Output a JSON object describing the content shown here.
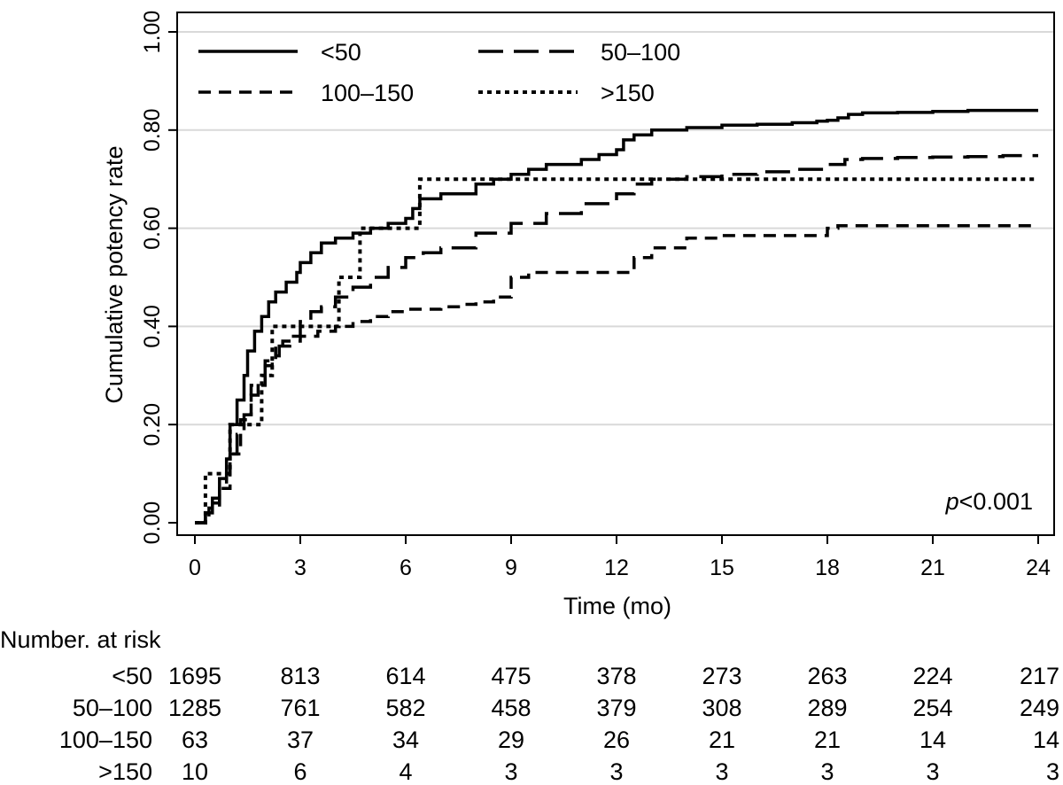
{
  "chart_data": {
    "type": "line",
    "subtype": "kaplan-meier cumulative incidence (step)",
    "title": "",
    "xlabel": "Time (mo)",
    "ylabel": "Cumulative potency rate",
    "xlim": [
      0,
      24
    ],
    "ylim": [
      0,
      1
    ],
    "xticks": [
      0,
      3,
      6,
      9,
      12,
      15,
      18,
      21,
      24
    ],
    "xtick_labels": [
      "0",
      "3",
      "6",
      "9",
      "12",
      "15",
      "18",
      "21",
      "24"
    ],
    "yticks": [
      0,
      0.2,
      0.4,
      0.6,
      0.8,
      1.0
    ],
    "ytick_labels": [
      "0.00",
      "0.20",
      "0.40",
      "0.60",
      "0.80",
      "1.00"
    ],
    "grid": "horizontal",
    "legend_position": "top-left",
    "annotation": {
      "prefix": "p",
      "text": "<0.001"
    },
    "series": [
      {
        "name": "<50",
        "style": "solid",
        "stroke_width": 3.5,
        "x": [
          0,
          0.3,
          0.5,
          0.7,
          0.9,
          1.0,
          1.2,
          1.4,
          1.5,
          1.7,
          1.9,
          2.1,
          2.3,
          2.6,
          2.9,
          3.0,
          3.3,
          3.6,
          4.0,
          4.5,
          5.0,
          5.5,
          6.0,
          6.2,
          6.4,
          7.0,
          8.0,
          8.5,
          9.0,
          9.5,
          10.0,
          11.0,
          11.5,
          12.0,
          12.2,
          12.5,
          13.0,
          14.0,
          15.0,
          16.0,
          17.0,
          17.7,
          18.0,
          18.3,
          18.6,
          19.0,
          20.0,
          21.0,
          22.0,
          23.0,
          24.0
        ],
        "y": [
          0,
          0.02,
          0.05,
          0.09,
          0.13,
          0.2,
          0.25,
          0.3,
          0.35,
          0.39,
          0.42,
          0.45,
          0.47,
          0.49,
          0.51,
          0.53,
          0.55,
          0.57,
          0.58,
          0.59,
          0.6,
          0.61,
          0.62,
          0.64,
          0.66,
          0.67,
          0.69,
          0.7,
          0.71,
          0.72,
          0.73,
          0.74,
          0.75,
          0.76,
          0.78,
          0.79,
          0.8,
          0.805,
          0.81,
          0.812,
          0.815,
          0.818,
          0.82,
          0.825,
          0.832,
          0.835,
          0.836,
          0.838,
          0.84,
          0.84,
          0.84
        ]
      },
      {
        "name": "50–100",
        "style": "longdash",
        "stroke_width": 3.5,
        "x": [
          0,
          0.3,
          0.5,
          0.7,
          0.9,
          1.0,
          1.2,
          1.4,
          1.6,
          1.8,
          2.0,
          2.2,
          2.4,
          2.7,
          3.0,
          3.3,
          3.6,
          4.0,
          4.5,
          5.0,
          5.5,
          6.0,
          6.5,
          7.0,
          8.0,
          9.0,
          10.0,
          11.0,
          12.0,
          12.5,
          13.0,
          14.0,
          15.0,
          16.0,
          17.0,
          18.0,
          18.5,
          19.0,
          20.0,
          21.0,
          22.0,
          23.0,
          24.0
        ],
        "y": [
          0,
          0.02,
          0.04,
          0.07,
          0.1,
          0.14,
          0.18,
          0.22,
          0.26,
          0.29,
          0.32,
          0.34,
          0.36,
          0.38,
          0.41,
          0.43,
          0.44,
          0.46,
          0.48,
          0.5,
          0.52,
          0.54,
          0.55,
          0.56,
          0.59,
          0.61,
          0.63,
          0.65,
          0.67,
          0.69,
          0.7,
          0.705,
          0.71,
          0.715,
          0.72,
          0.73,
          0.74,
          0.742,
          0.744,
          0.745,
          0.746,
          0.748,
          0.748
        ]
      },
      {
        "name": "100–150",
        "style": "dash",
        "stroke_width": 3.5,
        "x": [
          0,
          0.4,
          0.7,
          1.0,
          1.3,
          1.6,
          2.0,
          2.3,
          2.5,
          3.0,
          3.5,
          4.0,
          4.5,
          5.0,
          5.5,
          6.0,
          7.0,
          7.5,
          8.0,
          8.5,
          9.0,
          9.5,
          10.0,
          11.0,
          12.0,
          12.5,
          13.0,
          14.0,
          15.0,
          16.0,
          17.0,
          18.0,
          18.3,
          19.0,
          24.0
        ],
        "y": [
          0,
          0.03,
          0.07,
          0.14,
          0.21,
          0.28,
          0.33,
          0.36,
          0.37,
          0.38,
          0.39,
          0.4,
          0.41,
          0.42,
          0.43,
          0.435,
          0.44,
          0.445,
          0.45,
          0.46,
          0.5,
          0.51,
          0.51,
          0.51,
          0.51,
          0.54,
          0.56,
          0.58,
          0.585,
          0.585,
          0.585,
          0.6,
          0.605,
          0.605,
          0.605
        ]
      },
      {
        "name": ">150",
        "style": "dot",
        "stroke_width": 4,
        "x": [
          0,
          0.3,
          0.6,
          1.0,
          1.5,
          1.9,
          2.2,
          4.1,
          4.7,
          6.4,
          24.0
        ],
        "y": [
          0,
          0.1,
          0.1,
          0.2,
          0.2,
          0.3,
          0.4,
          0.5,
          0.6,
          0.7,
          0.7
        ]
      }
    ],
    "risk_table": {
      "title": "Number. at risk",
      "times": [
        0,
        3,
        6,
        9,
        12,
        15,
        18,
        21,
        24
      ],
      "rows": [
        {
          "label": "<50",
          "values": [
            "1695",
            "813",
            "614",
            "475",
            "378",
            "273",
            "263",
            "224",
            "217"
          ]
        },
        {
          "label": "50–100",
          "values": [
            "1285",
            "761",
            "582",
            "458",
            "379",
            "308",
            "289",
            "254",
            "249"
          ]
        },
        {
          "label": "100–150",
          "values": [
            "63",
            "37",
            "34",
            "29",
            "26",
            "21",
            "21",
            "14",
            "14"
          ]
        },
        {
          "label": ">150",
          "values": [
            "10",
            "6",
            "4",
            "3",
            "3",
            "3",
            "3",
            "3",
            "3"
          ]
        }
      ]
    }
  }
}
